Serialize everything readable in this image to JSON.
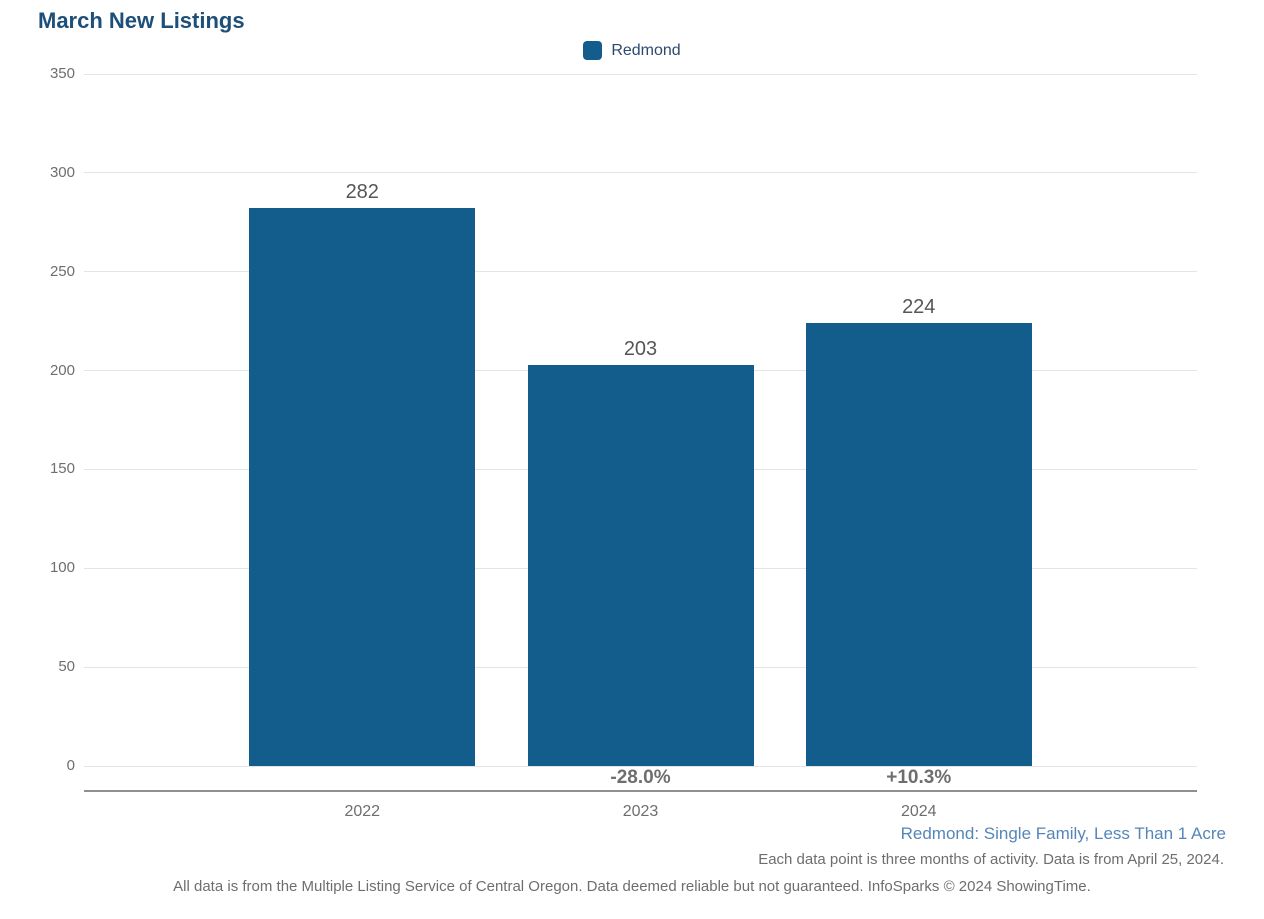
{
  "chart_data": {
    "type": "bar",
    "title": "March New Listings",
    "categories": [
      "2022",
      "2023",
      "2024"
    ],
    "series": [
      {
        "name": "Redmond",
        "color": "#135D8C",
        "values": [
          282,
          203,
          224
        ]
      }
    ],
    "value_labels": [
      "282",
      "203",
      "224"
    ],
    "pct_change_labels": [
      "",
      "-28.0%",
      "+10.3%"
    ],
    "ylim": [
      0,
      350
    ],
    "yticks": [
      0,
      50,
      100,
      150,
      200,
      250,
      300,
      350
    ],
    "grid": "horizontal",
    "legend_position": "top-center"
  },
  "legend": {
    "label": "Redmond",
    "swatch_color": "#135D8C"
  },
  "footer": {
    "series_note": "Redmond: Single Family, Less Than 1 Acre",
    "data_note": "Each data point is three months of activity. Data is from April 25, 2024.",
    "disclaimer": "All data is from the Multiple Listing Service of Central Oregon. Data deemed reliable but not guaranteed. InfoSparks © 2024 ShowingTime."
  },
  "colors": {
    "bar": "#135D8C",
    "title": "#1D4F78",
    "legend_text": "#2C4A6E",
    "gridline": "#E4E4E4",
    "axis_line": "#8F8F8F",
    "tick_text": "#6E6E6E",
    "value_label_text": "#565656",
    "pct_label_text": "#6E6E6E",
    "series_note_text": "#5586B8",
    "note_text": "#6E6E6E"
  }
}
